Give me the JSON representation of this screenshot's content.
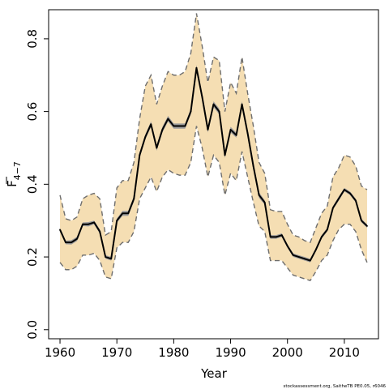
{
  "chart_data": {
    "type": "line",
    "title": "",
    "xlabel": "Year",
    "ylabel_main": "F",
    "ylabel_sub": "4−7",
    "xlim": [
      1958,
      2016
    ],
    "ylim": [
      -0.025,
      0.88
    ],
    "x_ticks": [
      1960,
      1970,
      1980,
      1990,
      2000,
      2010
    ],
    "y_ticks": [
      0.0,
      0.2,
      0.4,
      0.6,
      0.8
    ],
    "x_tick_labels": [
      "1960",
      "1970",
      "1980",
      "1990",
      "2000",
      "2010"
    ],
    "y_tick_labels": [
      "0.0",
      "0.2",
      "0.4",
      "0.6",
      "0.8"
    ],
    "grid": false,
    "band_color": "#f5deb3",
    "band_border_color": "#6e6e6e",
    "ribbon_color": "#9c9c9c",
    "line_color": "#000000",
    "x": [
      1960,
      1961,
      1962,
      1963,
      1964,
      1965,
      1966,
      1967,
      1968,
      1969,
      1970,
      1971,
      1972,
      1973,
      1974,
      1975,
      1976,
      1977,
      1978,
      1979,
      1980,
      1981,
      1982,
      1983,
      1984,
      1985,
      1986,
      1987,
      1988,
      1989,
      1990,
      1991,
      1992,
      1993,
      1994,
      1995,
      1996,
      1997,
      1998,
      1999,
      2000,
      2001,
      2002,
      2003,
      2004,
      2005,
      2006,
      2007,
      2008,
      2009,
      2010,
      2011,
      2012,
      2013,
      2014
    ],
    "series": [
      {
        "role": "estimate",
        "values": [
          0.275,
          0.24,
          0.24,
          0.25,
          0.29,
          0.29,
          0.295,
          0.27,
          0.2,
          0.195,
          0.3,
          0.32,
          0.32,
          0.36,
          0.48,
          0.53,
          0.565,
          0.5,
          0.55,
          0.58,
          0.56,
          0.56,
          0.56,
          0.6,
          0.72,
          0.64,
          0.55,
          0.62,
          0.6,
          0.48,
          0.55,
          0.535,
          0.62,
          0.54,
          0.45,
          0.37,
          0.35,
          0.255,
          0.255,
          0.26,
          0.23,
          0.205,
          0.2,
          0.195,
          0.19,
          0.22,
          0.255,
          0.275,
          0.335,
          0.36,
          0.385,
          0.375,
          0.355,
          0.3,
          0.285
        ]
      },
      {
        "role": "upper_bound",
        "values": [
          0.37,
          0.305,
          0.3,
          0.31,
          0.36,
          0.37,
          0.375,
          0.36,
          0.26,
          0.27,
          0.39,
          0.41,
          0.41,
          0.46,
          0.58,
          0.67,
          0.7,
          0.62,
          0.67,
          0.71,
          0.7,
          0.7,
          0.71,
          0.76,
          0.87,
          0.78,
          0.68,
          0.75,
          0.74,
          0.6,
          0.68,
          0.65,
          0.75,
          0.65,
          0.56,
          0.46,
          0.43,
          0.33,
          0.325,
          0.325,
          0.29,
          0.26,
          0.255,
          0.245,
          0.24,
          0.28,
          0.32,
          0.34,
          0.42,
          0.445,
          0.48,
          0.475,
          0.45,
          0.395,
          0.385
        ]
      },
      {
        "role": "lower_bound",
        "values": [
          0.185,
          0.165,
          0.165,
          0.175,
          0.205,
          0.205,
          0.21,
          0.19,
          0.145,
          0.14,
          0.225,
          0.24,
          0.24,
          0.27,
          0.36,
          0.39,
          0.42,
          0.38,
          0.42,
          0.44,
          0.43,
          0.425,
          0.425,
          0.46,
          0.56,
          0.5,
          0.42,
          0.48,
          0.46,
          0.37,
          0.43,
          0.41,
          0.49,
          0.42,
          0.35,
          0.285,
          0.27,
          0.19,
          0.19,
          0.19,
          0.17,
          0.15,
          0.145,
          0.14,
          0.135,
          0.16,
          0.19,
          0.205,
          0.245,
          0.275,
          0.29,
          0.29,
          0.27,
          0.22,
          0.185
        ]
      },
      {
        "role": "ribbon_upper",
        "values": [
          0.278,
          0.245,
          0.246,
          0.256,
          0.295,
          0.296,
          0.3,
          0.276,
          0.205,
          0.2,
          0.306,
          0.327,
          0.327,
          0.368,
          0.488,
          0.537,
          0.573,
          0.508,
          0.558,
          0.588,
          0.567,
          0.567,
          0.567,
          0.608,
          0.728,
          0.648,
          0.558,
          0.628,
          0.608,
          0.488,
          0.558,
          0.542,
          0.628,
          0.548,
          0.458,
          0.378,
          0.356,
          0.26,
          0.26,
          0.265,
          0.235,
          0.21,
          0.205,
          0.2,
          0.195,
          0.225,
          0.26,
          0.28,
          0.34,
          0.366,
          0.39,
          0.38,
          0.36,
          0.305,
          0.29
        ]
      },
      {
        "role": "ribbon_lower",
        "values": [
          0.27,
          0.235,
          0.234,
          0.244,
          0.285,
          0.284,
          0.29,
          0.264,
          0.195,
          0.19,
          0.294,
          0.313,
          0.313,
          0.352,
          0.472,
          0.523,
          0.557,
          0.492,
          0.542,
          0.572,
          0.553,
          0.553,
          0.553,
          0.592,
          0.712,
          0.632,
          0.542,
          0.612,
          0.592,
          0.472,
          0.542,
          0.528,
          0.612,
          0.532,
          0.442,
          0.362,
          0.344,
          0.25,
          0.25,
          0.255,
          0.225,
          0.2,
          0.195,
          0.19,
          0.185,
          0.215,
          0.25,
          0.27,
          0.33,
          0.354,
          0.38,
          0.37,
          0.35,
          0.295,
          0.28
        ]
      }
    ]
  },
  "footer": {
    "source": "stockassessment.org, SaitheTB PE0.05, r6046"
  }
}
